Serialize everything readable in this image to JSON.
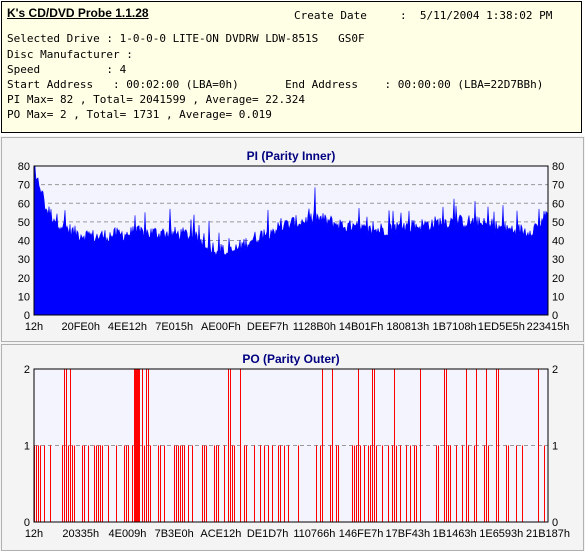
{
  "info": {
    "app_title": "K's CD/DVD Probe 1.1.28",
    "create_date_label": "Create Date",
    "create_date_value": ":  5/11/2004 1:38:02 PM",
    "lines": [
      "Selected Drive : 1-0-0-0 LITE-ON DVDRW LDW-851S   GS0F",
      "Disc Manufacturer :",
      "Speed          : 4",
      "Start Address   : 00:02:00 (LBA=0h)       End Address    : 00:00:00 (LBA=22D7BBh)",
      "PI Max= 82 , Total= 2041599 , Average= 22.324",
      "PO Max= 2 , Total= 1731 , Average= 0.019"
    ]
  },
  "colors": {
    "pi_fill": "#0000ff",
    "po_fill": "#ff0000",
    "plot_bg": "#f4f4ff",
    "title_color": "#000080"
  },
  "chart_data": [
    {
      "type": "area",
      "title": "PI (Parity Inner)",
      "ylim": [
        0,
        80
      ],
      "yticks": [
        0,
        10,
        20,
        30,
        40,
        50,
        60,
        70,
        80
      ],
      "xtick_labels": [
        "12h",
        "20FE0h",
        "4EE12h",
        "7E015h",
        "AE00Fh",
        "DEEF7h",
        "1128B0h",
        "14B01Fh",
        "180813h",
        "1B7108h",
        "1ED5E5h",
        "223415h"
      ],
      "grid": true,
      "x": [
        0,
        0.02,
        0.04,
        0.06,
        0.08,
        0.12,
        0.16,
        0.2,
        0.25,
        0.3,
        0.35,
        0.38,
        0.42,
        0.46,
        0.5,
        0.55,
        0.6,
        0.65,
        0.7,
        0.75,
        0.8,
        0.85,
        0.88,
        0.92,
        0.96,
        0.98,
        1.0
      ],
      "y": [
        72,
        58,
        52,
        47,
        44,
        42,
        43,
        44,
        44,
        43,
        36,
        33,
        40,
        45,
        49,
        52,
        48,
        45,
        47,
        48,
        50,
        50,
        48,
        46,
        45,
        48,
        55
      ]
    },
    {
      "type": "bar",
      "title": "PO (Parity Outer)",
      "ylim": [
        0,
        2
      ],
      "yticks": [
        0,
        1,
        2
      ],
      "xtick_labels": [
        "12h",
        "20335h",
        "4E009h",
        "7B3E0h",
        "ACE12h",
        "DE1D7h",
        "110766h",
        "146FE7h",
        "17BF43h",
        "1B1463h",
        "1E6593h",
        "21B187h"
      ],
      "grid": true,
      "x_value2": [
        0.06,
        0.07,
        0.2,
        0.21,
        0.22,
        0.38,
        0.4,
        0.56,
        0.58,
        0.63,
        0.66,
        0.7,
        0.75,
        0.8,
        0.84,
        0.86,
        0.88,
        0.9,
        0.98
      ]
    }
  ]
}
